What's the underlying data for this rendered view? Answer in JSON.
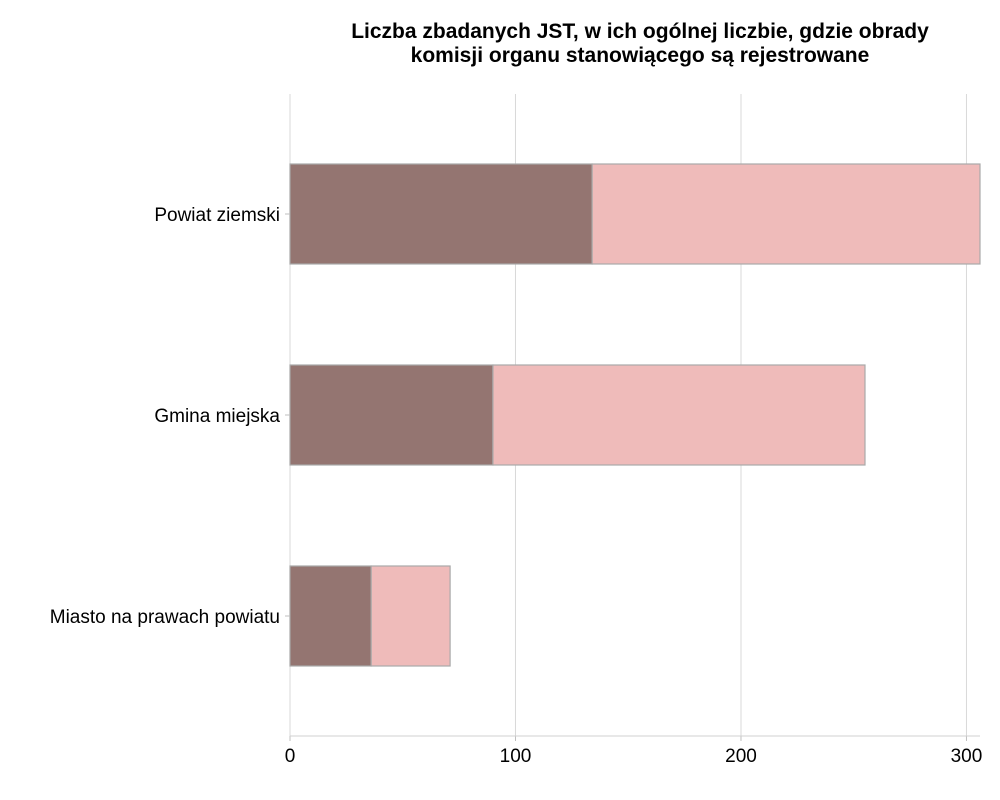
{
  "chart_data": {
    "type": "bar",
    "orientation": "horizontal",
    "stacked": true,
    "title": "Liczba zbadanych JST, w ich ogólnej liczbie, gdzie obrady komisji organu stanowiącego są rejestrowane",
    "title_lines": [
      "Liczba zbadanych JST, w ich ogólnej liczbie, gdzie obrady",
      "komisji organu stanowiącego są rejestrowane"
    ],
    "xlabel": "",
    "ylabel": "",
    "categories": [
      "Powiat ziemski",
      "Gmina miejska",
      "Miasto na prawach powiatu"
    ],
    "series": [
      {
        "values": [
          134,
          90,
          36
        ],
        "color": "#947571"
      },
      {
        "values": [
          172,
          165,
          35
        ],
        "color": "#efbbba"
      }
    ],
    "totals": [
      306,
      255,
      71
    ],
    "xlim": [
      0,
      306
    ],
    "xticks": [
      0,
      100,
      200,
      300
    ],
    "grid": true,
    "legend": "none"
  }
}
